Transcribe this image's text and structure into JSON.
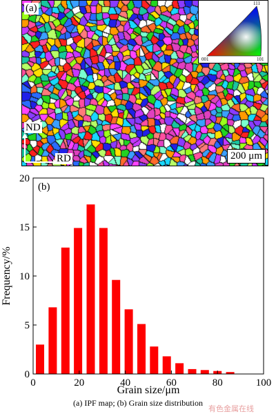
{
  "panel_a": {
    "label": "(a)",
    "nd_label": "ND",
    "rd_label": "RD",
    "scale_bar": "200 μm",
    "ipf_key": {
      "corner_top": "111",
      "corner_left": "001",
      "corner_right": "101"
    }
  },
  "panel_b": {
    "label": "(b)"
  },
  "caption": "(a) IPF  map; (b) Grain size distribution",
  "watermark": "有色金属在线",
  "colors": {
    "bar": "#ff0000",
    "axis": "#000000"
  },
  "chart_data": {
    "type": "bar",
    "title": "",
    "xlabel": "Grain size/μm",
    "ylabel": "Frequency/%",
    "x": [
      3,
      8.5,
      14,
      19.5,
      25,
      30.5,
      36,
      41.5,
      47,
      52.5,
      58,
      63.5,
      69,
      74.5,
      80,
      85.5
    ],
    "values": [
      3.0,
      6.8,
      12.9,
      14.9,
      17.3,
      14.9,
      9.6,
      6.6,
      5.1,
      2.8,
      1.8,
      1.1,
      0.5,
      0.4,
      0.3,
      0.2
    ],
    "xlim": [
      0,
      100
    ],
    "ylim": [
      0,
      20
    ],
    "xticks": [
      0,
      20,
      40,
      60,
      80,
      100
    ],
    "yticks": [
      0,
      5,
      10,
      15,
      20
    ],
    "grid": false
  }
}
